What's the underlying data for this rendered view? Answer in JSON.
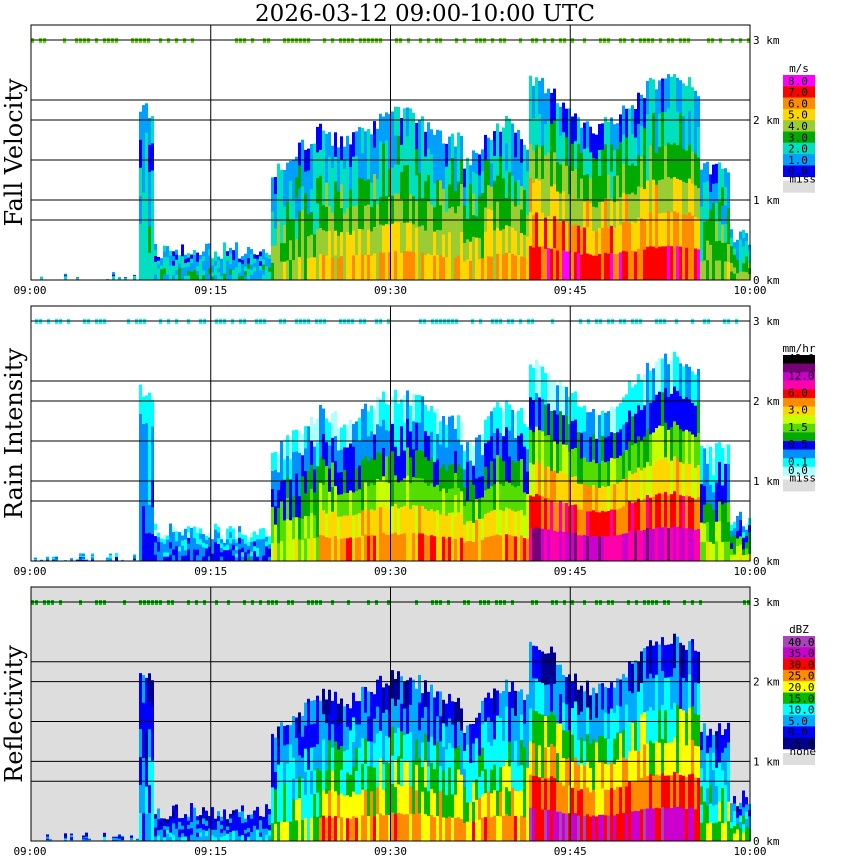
{
  "header": {
    "title": "2026-03-12   09:00-10:00 UTC"
  },
  "chart_data": [
    {
      "type": "heatmap",
      "title": "Fall Velocity",
      "x_ticks": [
        "09:00",
        "09:15",
        "09:30",
        "09:45",
        "10:00"
      ],
      "y_ticks": [
        "0 km",
        "1 km",
        "2 km",
        "3 km"
      ],
      "xlim": [
        "09:00",
        "10:00"
      ],
      "ylim": [
        0,
        3
      ],
      "grid": true,
      "legend": {
        "unit": "m/s",
        "levels": [
          {
            "label": "8.0",
            "color": "#ff00ff"
          },
          {
            "label": "7.0",
            "color": "#ff0000"
          },
          {
            "label": "6.0",
            "color": "#ff8c00"
          },
          {
            "label": "5.0",
            "color": "#ffd700"
          },
          {
            "label": "4.0",
            "color": "#9acd32"
          },
          {
            "label": "3.0",
            "color": "#00aa00"
          },
          {
            "label": "2.0",
            "color": "#00e0c0"
          },
          {
            "label": "1.0",
            "color": "#00a0ff"
          },
          {
            "label": "0.0",
            "color": "#0000ff"
          }
        ],
        "missing": {
          "label": "miss",
          "color": "#dddddd"
        }
      }
    },
    {
      "type": "heatmap",
      "title": "Rain Intensity",
      "x_ticks": [
        "09:00",
        "09:15",
        "09:30",
        "09:45",
        "10:00"
      ],
      "y_ticks": [
        "0 km",
        "1 km",
        "2 km",
        "3 km"
      ],
      "xlim": [
        "09:00",
        "10:00"
      ],
      "ylim": [
        0,
        3
      ],
      "grid": true,
      "legend": {
        "unit": "mm/hr",
        "levels": [
          {
            "label": "48.0",
            "color": "#000000"
          },
          {
            "label": "",
            "color": "#770077"
          },
          {
            "label": "12.0",
            "color": "#cc00cc"
          },
          {
            "label": "",
            "color": "#ff00aa"
          },
          {
            "label": "6.0",
            "color": "#ff0000"
          },
          {
            "label": "",
            "color": "#ff8c00"
          },
          {
            "label": "3.0",
            "color": "#ffd700"
          },
          {
            "label": "",
            "color": "#c8ff00"
          },
          {
            "label": "1.5",
            "color": "#55dd00"
          },
          {
            "label": "",
            "color": "#00aa00"
          },
          {
            "label": "0.5",
            "color": "#0000ff"
          },
          {
            "label": "",
            "color": "#0090ff"
          },
          {
            "label": "0.1",
            "color": "#00ffff"
          },
          {
            "label": "0.0",
            "color": "#b0ffff"
          }
        ],
        "missing": {
          "label": "miss",
          "color": "#dddddd"
        }
      }
    },
    {
      "type": "heatmap",
      "title": "Reflectivity",
      "x_ticks": [
        "09:00",
        "09:15",
        "09:30",
        "09:45",
        "10:00"
      ],
      "y_ticks": [
        "0 km",
        "1 km",
        "2 km",
        "3 km"
      ],
      "xlim": [
        "09:00",
        "10:00"
      ],
      "ylim": [
        0,
        3
      ],
      "grid": true,
      "legend": {
        "unit": "dBZ",
        "levels": [
          {
            "label": "40.0",
            "color": "#aa44bb"
          },
          {
            "label": "35.0",
            "color": "#cc00cc"
          },
          {
            "label": "30.0",
            "color": "#ff0000"
          },
          {
            "label": "25.0",
            "color": "#ff8c00"
          },
          {
            "label": "20.0",
            "color": "#ffff00"
          },
          {
            "label": "15.0",
            "color": "#00bb00"
          },
          {
            "label": "10.0",
            "color": "#00ffff"
          },
          {
            "label": "5.0",
            "color": "#00aaff"
          },
          {
            "label": "0.0",
            "color": "#0000ff"
          },
          {
            "label": "-5.0",
            "color": "#000090"
          }
        ],
        "missing": {
          "label": "none",
          "color": "#dddddd"
        }
      }
    }
  ]
}
